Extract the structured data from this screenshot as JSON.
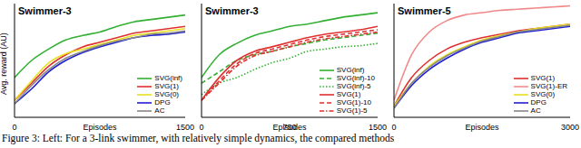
{
  "chart_data": [
    {
      "type": "line",
      "title": "Swimmer-3",
      "xlabel": "Episodes",
      "ylabel": "Avg. reward (AU)",
      "x": [
        0,
        150,
        300,
        450,
        600,
        750,
        900,
        1050,
        1200,
        1350,
        1500
      ],
      "xlim": [
        0,
        1500
      ],
      "xticks": [
        0,
        1500
      ],
      "ylim": [
        0,
        1
      ],
      "tick_labels": "x",
      "legend": "lower right",
      "series": [
        {
          "name": "SVG(inf)",
          "color": "#33b033",
          "line_style": "solid",
          "values": [
            0.35,
            0.5,
            0.6,
            0.68,
            0.72,
            0.75,
            0.8,
            0.84,
            0.86,
            0.88,
            0.9
          ]
        },
        {
          "name": "SVG(1)",
          "color": "#e03030",
          "line_style": "solid",
          "values": [
            0.15,
            0.3,
            0.45,
            0.55,
            0.62,
            0.66,
            0.7,
            0.74,
            0.76,
            0.78,
            0.8
          ]
        },
        {
          "name": "SVG(0)",
          "color": "#e8e020",
          "line_style": "solid",
          "values": [
            0.15,
            0.32,
            0.48,
            0.56,
            0.6,
            0.64,
            0.68,
            0.72,
            0.74,
            0.76,
            0.78
          ]
        },
        {
          "name": "DPG",
          "color": "#2020d0",
          "line_style": "solid",
          "values": [
            0.12,
            0.25,
            0.4,
            0.5,
            0.57,
            0.62,
            0.66,
            0.7,
            0.72,
            0.73,
            0.75
          ]
        },
        {
          "name": "AC",
          "color": "#888888",
          "line_style": "solid",
          "values": [
            0.12,
            0.28,
            0.42,
            0.52,
            0.58,
            0.63,
            0.67,
            0.7,
            0.73,
            0.74,
            0.76
          ]
        }
      ]
    },
    {
      "type": "line",
      "title": "Swimmer-3",
      "xlabel": "Episodes",
      "x": [
        0,
        150,
        300,
        450,
        600,
        750,
        900,
        1050,
        1200,
        1350,
        1500
      ],
      "xlim": [
        0,
        1500
      ],
      "xticks": [
        0,
        750,
        1500
      ],
      "ylim": [
        0,
        1
      ],
      "tick_labels": "x",
      "legend": "lower right",
      "series": [
        {
          "name": "SVG(inf)",
          "color": "#33b033",
          "line_style": "solid",
          "values": [
            0.35,
            0.55,
            0.65,
            0.72,
            0.76,
            0.8,
            0.82,
            0.85,
            0.88,
            0.9,
            0.92
          ]
        },
        {
          "name": "SVG(inf)-10",
          "color": "#33b033",
          "line_style": "dashed",
          "values": [
            0.3,
            0.4,
            0.5,
            0.55,
            0.58,
            0.62,
            0.65,
            0.68,
            0.7,
            0.72,
            0.74
          ]
        },
        {
          "name": "SVG(inf)-5",
          "color": "#33b033",
          "line_style": "dotted",
          "values": [
            0.2,
            0.3,
            0.35,
            0.42,
            0.48,
            0.52,
            0.58,
            0.6,
            0.62,
            0.63,
            0.65
          ]
        },
        {
          "name": "SVG(1)",
          "color": "#e03030",
          "line_style": "solid",
          "values": [
            0.15,
            0.35,
            0.5,
            0.58,
            0.62,
            0.66,
            0.7,
            0.73,
            0.75,
            0.77,
            0.8
          ]
        },
        {
          "name": "SVG(1)-10",
          "color": "#e03030",
          "line_style": "dashed",
          "values": [
            0.15,
            0.32,
            0.47,
            0.56,
            0.6,
            0.64,
            0.68,
            0.71,
            0.73,
            0.75,
            0.77
          ]
        },
        {
          "name": "SVG(1)-5",
          "color": "#e03030",
          "line_style": "dashdot",
          "values": [
            0.15,
            0.3,
            0.45,
            0.54,
            0.58,
            0.62,
            0.66,
            0.69,
            0.71,
            0.73,
            0.75
          ]
        }
      ]
    },
    {
      "type": "line",
      "title": "Swimmer-5",
      "xlabel": "Episodes",
      "x": [
        0,
        300,
        600,
        900,
        1200,
        1500,
        1800,
        2100,
        2400,
        2700,
        3000
      ],
      "xlim": [
        0,
        3000
      ],
      "xticks": [
        0,
        3000
      ],
      "ylim": [
        0,
        1
      ],
      "tick_labels": "x",
      "legend": "lower right",
      "series": [
        {
          "name": "SVG(1)",
          "color": "#e03030",
          "line_style": "solid",
          "values": [
            0.1,
            0.35,
            0.5,
            0.6,
            0.66,
            0.7,
            0.73,
            0.76,
            0.78,
            0.8,
            0.82
          ]
        },
        {
          "name": "SVG(1)-ER",
          "color": "#f08a8a",
          "line_style": "solid",
          "values": [
            0.15,
            0.55,
            0.75,
            0.85,
            0.9,
            0.92,
            0.94,
            0.95,
            0.96,
            0.97,
            0.98
          ]
        },
        {
          "name": "SVG(0)",
          "color": "#e8e020",
          "line_style": "solid",
          "values": [
            0.1,
            0.3,
            0.45,
            0.55,
            0.62,
            0.68,
            0.72,
            0.75,
            0.78,
            0.8,
            0.82
          ]
        },
        {
          "name": "DPG",
          "color": "#2020d0",
          "line_style": "solid",
          "values": [
            0.08,
            0.28,
            0.42,
            0.52,
            0.6,
            0.66,
            0.7,
            0.74,
            0.76,
            0.78,
            0.8
          ]
        },
        {
          "name": "AC",
          "color": "#888888",
          "line_style": "solid",
          "values": [
            0.08,
            0.3,
            0.44,
            0.54,
            0.61,
            0.67,
            0.71,
            0.75,
            0.77,
            0.79,
            0.81
          ]
        }
      ]
    }
  ],
  "caption": "Figure 3: Left: For a 3-link swimmer, with relatively simple dynamics, the compared methods"
}
